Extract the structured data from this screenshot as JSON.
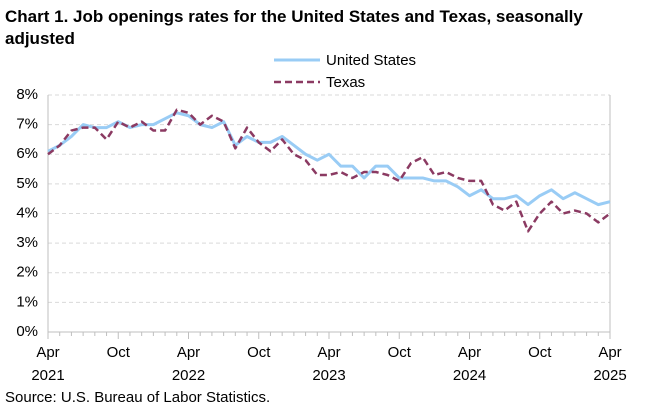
{
  "chart_data": {
    "type": "line",
    "title": "Chart 1. Job openings rates for the United States and Texas, seasonally adjusted",
    "source": "Source: U.S. Bureau of Labor Statistics.",
    "xlabel": "",
    "ylabel": "",
    "ylim": [
      0,
      8
    ],
    "yticks": [
      "0%",
      "1%",
      "2%",
      "3%",
      "4%",
      "5%",
      "6%",
      "7%",
      "8%"
    ],
    "grid": true,
    "legend_position": "top-right",
    "x_ticks": [
      {
        "month": "Apr",
        "year": "2021",
        "index": 0
      },
      {
        "month": "Oct",
        "year": "",
        "index": 6
      },
      {
        "month": "Apr",
        "year": "2022",
        "index": 12
      },
      {
        "month": "Oct",
        "year": "",
        "index": 18
      },
      {
        "month": "Apr",
        "year": "2023",
        "index": 24
      },
      {
        "month": "Oct",
        "year": "",
        "index": 30
      },
      {
        "month": "Apr",
        "year": "2024",
        "index": 36
      },
      {
        "month": "Oct",
        "year": "",
        "index": 42
      },
      {
        "month": "Apr",
        "year": "2025",
        "index": 48
      }
    ],
    "n_points": 49,
    "series": [
      {
        "name": "United States",
        "color": "#99ccf5",
        "style": "solid",
        "values": [
          6.1,
          6.3,
          6.6,
          7.0,
          6.9,
          6.9,
          7.1,
          6.9,
          7.0,
          7.0,
          7.2,
          7.4,
          7.3,
          7.0,
          6.9,
          7.1,
          6.3,
          6.6,
          6.4,
          6.4,
          6.6,
          6.3,
          6.0,
          5.8,
          6.0,
          5.6,
          5.6,
          5.2,
          5.6,
          5.6,
          5.2,
          5.2,
          5.2,
          5.1,
          5.1,
          4.9,
          4.6,
          4.8,
          4.5,
          4.5,
          4.6,
          4.3,
          4.6,
          4.8,
          4.5,
          4.7,
          4.5,
          4.3,
          4.4
        ]
      },
      {
        "name": "Texas",
        "color": "#8b3a62",
        "style": "dashed",
        "values": [
          6.0,
          6.3,
          6.8,
          6.9,
          6.9,
          6.5,
          7.1,
          6.9,
          7.1,
          6.8,
          6.8,
          7.5,
          7.4,
          7.0,
          7.3,
          7.1,
          6.2,
          6.9,
          6.4,
          6.1,
          6.5,
          6.0,
          5.8,
          5.3,
          5.3,
          5.4,
          5.2,
          5.4,
          5.4,
          5.3,
          5.1,
          5.7,
          5.9,
          5.3,
          5.4,
          5.2,
          5.1,
          5.1,
          4.3,
          4.1,
          4.4,
          3.4,
          4.0,
          4.4,
          4.0,
          4.1,
          4.0,
          3.7,
          4.0
        ]
      }
    ]
  }
}
